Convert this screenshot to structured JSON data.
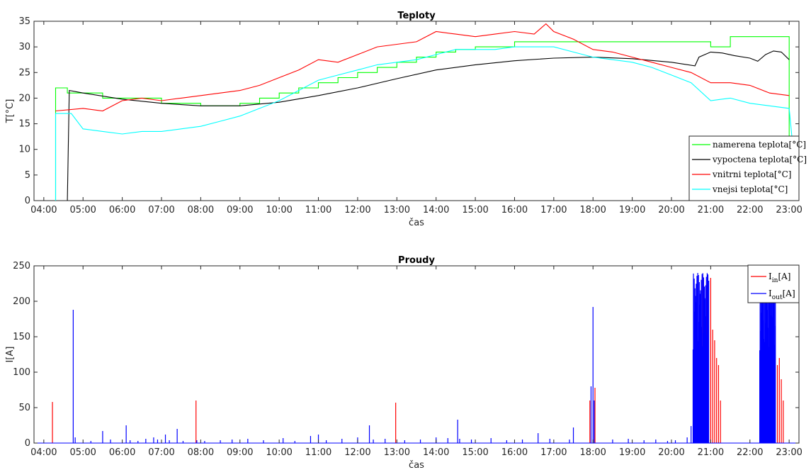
{
  "chart_data": [
    {
      "type": "line",
      "title": "Teploty",
      "xlabel": "čas",
      "ylabel": "T[°C]",
      "ylim": [
        0,
        35
      ],
      "yticks": [
        "0",
        "5",
        "10",
        "15",
        "20",
        "25",
        "30",
        "35"
      ],
      "xlim": [
        3.75,
        23.25
      ],
      "xticks": [
        "04:00",
        "05:00",
        "06:00",
        "07:00",
        "08:00",
        "09:00",
        "10:00",
        "11:00",
        "12:00",
        "13:00",
        "14:00",
        "15:00",
        "16:00",
        "17:00",
        "18:00",
        "19:00",
        "20:00",
        "21:00",
        "22:00",
        "23:00"
      ],
      "grid": false,
      "legend_position": "lower-right",
      "series": [
        {
          "name": "namerena teplota[°C]",
          "color": "#00ff00",
          "x": [
            4.3,
            4.3,
            4.6,
            4.6,
            5.5,
            5.5,
            7.0,
            7.0,
            8.0,
            8.0,
            9.0,
            9.0,
            9.5,
            9.5,
            10.0,
            10.0,
            10.5,
            10.5,
            11.0,
            11.0,
            11.5,
            11.5,
            12.0,
            12.0,
            12.5,
            12.5,
            13.0,
            13.0,
            13.5,
            13.5,
            14.0,
            14.0,
            14.5,
            14.5,
            15.0,
            15.0,
            15.5,
            15.5,
            16.0,
            16.0,
            18.0,
            18.0,
            21.0,
            21.0,
            21.5,
            21.5,
            23.0,
            23.0
          ],
          "y": [
            0,
            22,
            22,
            21,
            21,
            20,
            20,
            19,
            19,
            18.5,
            18.5,
            19,
            19,
            20,
            20,
            21,
            21,
            22,
            22,
            23,
            23,
            24,
            24,
            25,
            25,
            26,
            26,
            27,
            27,
            28,
            28,
            29,
            29,
            29.5,
            29.5,
            30,
            30,
            30,
            30,
            31,
            31,
            31,
            31,
            30,
            30,
            32,
            32,
            0
          ]
        },
        {
          "name": "vypoctena teplota[°C]",
          "color": "#000000",
          "x": [
            4.6,
            4.65,
            5.0,
            6.0,
            7.0,
            8.0,
            9.0,
            10.0,
            11.0,
            12.0,
            13.0,
            14.0,
            15.0,
            16.0,
            17.0,
            18.0,
            19.0,
            20.0,
            20.6,
            20.7,
            21.0,
            21.3,
            21.6,
            22.0,
            22.2,
            22.4,
            22.6,
            22.8,
            23.0
          ],
          "y": [
            0,
            21.5,
            21.0,
            19.8,
            19.0,
            18.5,
            18.5,
            19.2,
            20.5,
            22.0,
            23.8,
            25.5,
            26.5,
            27.3,
            27.8,
            28.0,
            27.7,
            27.0,
            26.3,
            28.0,
            29.0,
            28.8,
            28.3,
            27.8,
            27.2,
            28.5,
            29.2,
            29.0,
            27.5
          ]
        },
        {
          "name": "vnitrni teplota[°C]",
          "color": "#ff0000",
          "x": [
            4.3,
            5.0,
            5.5,
            6.0,
            6.5,
            7.0,
            7.5,
            8.0,
            8.5,
            9.0,
            9.5,
            10.0,
            10.5,
            11.0,
            11.5,
            12.0,
            12.5,
            13.0,
            13.5,
            14.0,
            14.5,
            15.0,
            15.5,
            16.0,
            16.5,
            16.8,
            17.0,
            17.5,
            18.0,
            18.5,
            19.0,
            19.5,
            20.0,
            20.5,
            21.0,
            21.5,
            22.0,
            22.5,
            23.0
          ],
          "y": [
            17.5,
            18.0,
            17.5,
            19.5,
            20.0,
            19.5,
            20.0,
            20.5,
            21.0,
            21.5,
            22.5,
            24.0,
            25.5,
            27.5,
            27.0,
            28.5,
            30.0,
            30.5,
            31.0,
            33.0,
            32.5,
            32.0,
            32.5,
            33.0,
            32.5,
            34.5,
            33.0,
            31.5,
            29.5,
            29.0,
            28.0,
            27.0,
            26.0,
            25.0,
            23.0,
            23.0,
            22.5,
            21.0,
            20.5
          ]
        },
        {
          "name": "vnejsi teplota[°C]",
          "color": "#00ffff",
          "x": [
            4.3,
            4.3,
            4.7,
            5.0,
            5.5,
            6.0,
            6.5,
            7.0,
            7.5,
            8.0,
            8.5,
            9.0,
            9.5,
            10.0,
            10.5,
            11.0,
            11.5,
            12.0,
            12.5,
            13.0,
            13.5,
            14.0,
            14.5,
            15.0,
            15.5,
            16.0,
            16.5,
            17.0,
            17.5,
            18.0,
            18.5,
            19.0,
            19.5,
            20.0,
            20.5,
            21.0,
            21.5,
            22.0,
            22.5,
            23.0,
            23.1
          ],
          "y": [
            0,
            17.0,
            17.0,
            14.0,
            13.5,
            13.0,
            13.5,
            13.5,
            14.0,
            14.5,
            15.5,
            16.5,
            18.0,
            19.5,
            21.5,
            23.5,
            24.5,
            25.5,
            26.5,
            27.0,
            27.5,
            28.5,
            29.5,
            29.5,
            29.5,
            30.0,
            30.0,
            30.0,
            29.0,
            28.0,
            27.5,
            27.0,
            26.0,
            24.5,
            23.0,
            19.5,
            20.0,
            19.0,
            18.5,
            18.0,
            10.0
          ]
        }
      ]
    },
    {
      "type": "line",
      "title": "Proudy",
      "xlabel": "čas",
      "ylabel": "I[A]",
      "ylim": [
        0,
        250
      ],
      "yticks": [
        "0",
        "50",
        "100",
        "150",
        "200",
        "250"
      ],
      "xlim": [
        3.75,
        23.25
      ],
      "xticks": [
        "04:00",
        "05:00",
        "06:00",
        "07:00",
        "08:00",
        "09:00",
        "10:00",
        "11:00",
        "12:00",
        "13:00",
        "14:00",
        "15:00",
        "16:00",
        "17:00",
        "18:00",
        "19:00",
        "20:00",
        "21:00",
        "22:00",
        "23:00"
      ],
      "grid": false,
      "legend_position": "top-right",
      "legend": [
        {
          "main": "I",
          "sub": "in",
          "suffix": "[A]",
          "color": "#ff0000"
        },
        {
          "main": "I",
          "sub": "out",
          "suffix": "[A]",
          "color": "#0000ff"
        }
      ],
      "series": [
        {
          "name": "I_in[A]",
          "color": "#ff0000",
          "spikes_x": [
            4.22,
            7.88,
            12.97,
            17.92,
            18.05,
            20.8,
            20.9,
            21.0,
            21.05,
            21.1,
            21.15,
            21.2,
            21.25,
            22.6,
            22.7,
            22.75,
            22.8,
            22.85
          ],
          "spikes_y": [
            58,
            60,
            57,
            60,
            78,
            235,
            225,
            233,
            160,
            145,
            120,
            110,
            60,
            250,
            110,
            120,
            90,
            60
          ]
        },
        {
          "name": "I_out[A]",
          "color": "#0000ff",
          "spikes_x": [
            4.75,
            4.8,
            5.2,
            5.5,
            5.7,
            6.1,
            6.2,
            6.4,
            6.6,
            6.8,
            6.9,
            7.1,
            7.2,
            7.4,
            7.55,
            7.9,
            8.1,
            8.5,
            8.8,
            9.2,
            9.6,
            10.1,
            10.4,
            10.8,
            11.0,
            11.2,
            11.6,
            12.0,
            12.3,
            12.4,
            12.7,
            13.2,
            13.6,
            14.0,
            14.3,
            14.55,
            14.6,
            14.9,
            15.4,
            15.8,
            16.2,
            16.6,
            16.9,
            17.4,
            17.5,
            17.95,
            18.0,
            18.03,
            18.5,
            18.9,
            19.3,
            19.6,
            19.9,
            20.1,
            20.4,
            20.5
          ],
          "spikes_y": [
            188,
            8,
            3,
            17,
            5,
            25,
            4,
            3,
            6,
            8,
            5,
            12,
            4,
            20,
            3,
            4,
            3,
            4,
            5,
            6,
            4,
            7,
            3,
            10,
            12,
            4,
            6,
            8,
            25,
            5,
            6,
            4,
            5,
            8,
            7,
            33,
            6,
            5,
            7,
            4,
            5,
            14,
            6,
            5,
            22,
            80,
            192,
            60,
            5,
            6,
            4,
            5,
            3,
            4,
            8,
            24
          ],
          "bursts": [
            {
              "from": 20.55,
              "to": 20.95,
              "peak": 240
            },
            {
              "from": 22.25,
              "to": 22.65,
              "peak": 238
            }
          ]
        }
      ]
    }
  ]
}
